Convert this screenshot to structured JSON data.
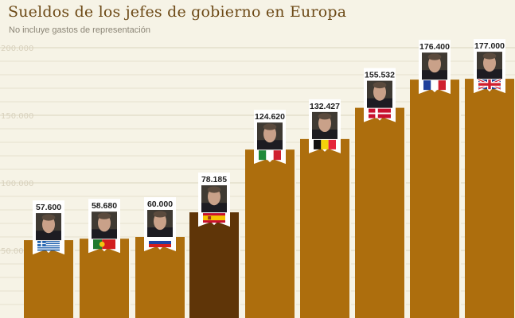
{
  "chart_data": {
    "type": "bar",
    "title": "Sueldos de los jefes de gobierno en Europa",
    "subtitle": "No incluye gastos de representación",
    "xlabel": "",
    "ylabel": "",
    "ylim": [
      0,
      200000
    ],
    "yticks": [
      50000,
      100000,
      150000,
      200000
    ],
    "ytick_labels": [
      "50.000",
      "100.000",
      "150.000",
      "200.000"
    ],
    "grid": true,
    "legend": "none",
    "categories": [
      "Greece",
      "Portugal",
      "Russia",
      "Spain",
      "Italy",
      "Belgium",
      "Denmark",
      "France",
      "United Kingdom"
    ],
    "values": [
      57600,
      58680,
      60000,
      78185,
      124620,
      132427,
      155532,
      176400,
      177000
    ],
    "value_labels": [
      "57.600",
      "58.680",
      "60.000",
      "78.185",
      "124.620",
      "132.427",
      "155.532",
      "176.400",
      "177.000"
    ],
    "highlight_index": 3,
    "colors": {
      "background": "#f6f3e6",
      "grid": "#e0dac5",
      "bar": "#ad6e0d",
      "bar_highlight": "#5f3508",
      "bar_separator": "#f6f3e6",
      "title": "#6d4a17",
      "subtitle": "#8b8576",
      "tick_label": "#d8d1bd"
    },
    "flags": [
      "greece-flag-icon",
      "portugal-flag-icon",
      "russia-flag-icon",
      "spain-flag-icon",
      "italy-flag-icon",
      "belgium-flag-icon",
      "denmark-flag-icon",
      "france-flag-icon",
      "uk-flag-icon"
    ],
    "portrait": "portrait-photo-icon"
  }
}
